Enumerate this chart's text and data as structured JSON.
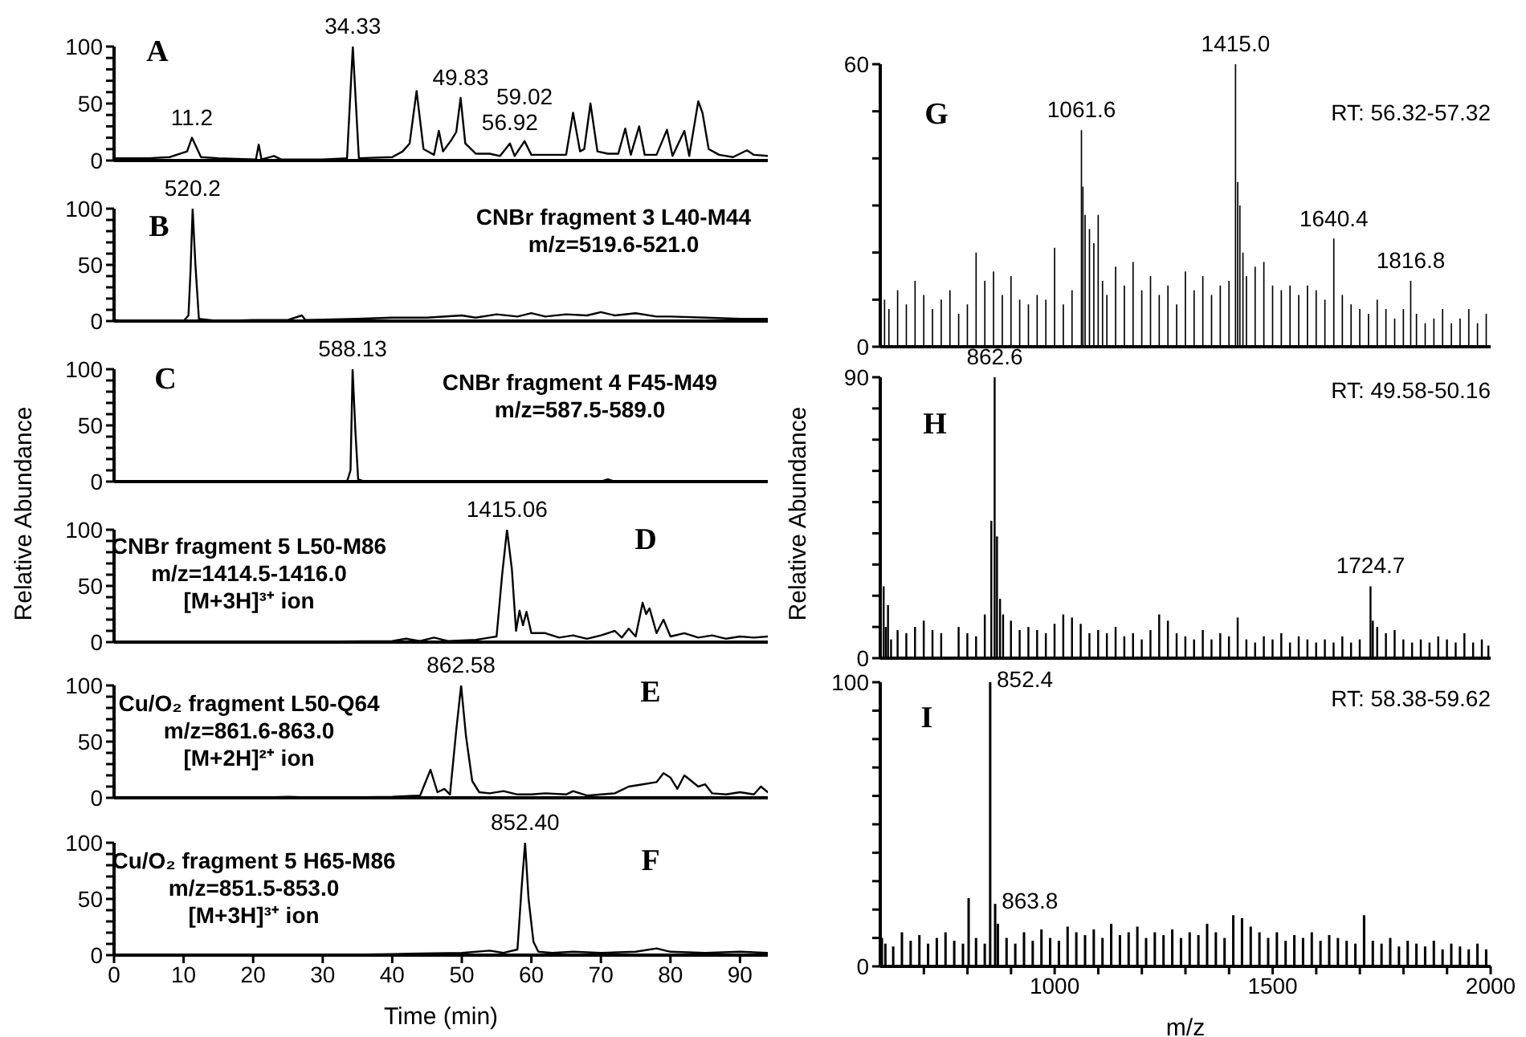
{
  "chart_data": [
    {
      "type": "line",
      "title": "A",
      "marker": "none",
      "tick_labels": "y",
      "xlim": [
        0,
        94
      ],
      "xticks": [
        0,
        10,
        20,
        30,
        40,
        50,
        60,
        70,
        80,
        90
      ],
      "ylim": [
        0,
        100
      ],
      "yticks": [
        0,
        {
          "value": 10,
          "label": null
        },
        {
          "value": 20,
          "label": null
        },
        {
          "value": 30,
          "label": null
        },
        {
          "value": 40,
          "label": null
        },
        50,
        {
          "value": 60,
          "label": null
        },
        {
          "value": 70,
          "label": null
        },
        {
          "value": 80,
          "label": null
        },
        {
          "value": 90,
          "label": null
        },
        100
      ],
      "x": [
        0,
        5,
        8,
        10.5,
        11.2,
        12.5,
        15,
        20.4,
        20.8,
        21.2,
        23,
        24,
        30,
        33.5,
        34.33,
        35.2,
        40,
        41.5,
        42.5,
        43.5,
        44.5,
        46,
        46.7,
        47.3,
        48.5,
        49.2,
        49.83,
        50.5,
        52,
        54,
        55.5,
        56.92,
        57.6,
        59.02,
        60,
        62,
        65,
        66,
        67,
        67.6,
        68.5,
        69.5,
        71,
        72.5,
        73.5,
        74.3,
        75.5,
        76.3,
        78,
        79.5,
        80.3,
        82,
        82.7,
        84,
        84.6,
        85.5,
        87,
        89,
        91,
        92,
        94
      ],
      "series": [
        {
          "color": "#000000",
          "values": [
            2,
            2,
            3,
            8,
            20,
            3,
            2,
            1,
            14,
            1,
            4,
            1,
            1,
            2,
            100,
            2,
            3,
            8,
            15,
            61,
            10,
            5,
            26,
            8,
            18,
            25,
            55,
            15,
            6,
            6,
            4,
            15,
            4,
            17,
            5,
            5,
            5,
            42,
            8,
            10,
            50,
            8,
            6,
            6,
            28,
            5,
            30,
            5,
            5,
            27,
            4,
            26,
            4,
            52,
            42,
            10,
            5,
            3,
            9,
            5,
            4
          ]
        }
      ],
      "annotations": [
        {
          "text": "11.2",
          "x": 11.2,
          "y": 20
        },
        {
          "text": "34.33",
          "x": 34.33,
          "y": 100
        },
        {
          "text": "49.83",
          "x": 49.83,
          "y": 55
        },
        {
          "text": "56.92",
          "x": 56.92,
          "y": 15
        },
        {
          "text": "59.02",
          "x": 59.02,
          "y": 17
        }
      ]
    },
    {
      "type": "line",
      "title": "B",
      "marker": "none",
      "tick_labels": "y",
      "xlim": [
        0,
        94
      ],
      "xticks": [
        0,
        10,
        20,
        30,
        40,
        50,
        60,
        70,
        80,
        90
      ],
      "ylim": [
        0,
        100
      ],
      "yticks": [
        0,
        {
          "value": 10,
          "label": null
        },
        {
          "value": 20,
          "label": null
        },
        {
          "value": 30,
          "label": null
        },
        {
          "value": 40,
          "label": null
        },
        50,
        {
          "value": 60,
          "label": null
        },
        {
          "value": 70,
          "label": null
        },
        {
          "value": 80,
          "label": null
        },
        {
          "value": 90,
          "label": null
        },
        100
      ],
      "x": [
        0,
        2,
        10,
        10.7,
        11.0,
        11.3,
        11.7,
        12.2,
        15,
        20,
        25,
        27,
        27.5,
        35,
        40,
        45,
        50,
        52,
        55,
        58,
        60,
        62,
        65,
        68,
        70,
        72,
        75,
        78,
        80,
        85,
        90,
        94
      ],
      "series": [
        {
          "color": "#000000",
          "values": [
            1,
            0,
            0,
            5,
            45,
            100,
            50,
            2,
            0,
            1,
            1,
            5,
            1,
            2,
            3,
            3,
            5,
            3,
            6,
            4,
            7,
            4,
            6,
            5,
            8,
            5,
            7,
            4,
            4,
            3,
            2,
            2
          ]
        }
      ],
      "annotations": [
        {
          "text": "520.2",
          "x": 11.3,
          "y": 100
        },
        "CNBr fragment 3 L40-M44",
        "m/z=519.6-521.0"
      ]
    },
    {
      "type": "line",
      "title": "C",
      "marker": "none",
      "tick_labels": "y",
      "ylabel": "Relative Abundance",
      "xlim": [
        0,
        94
      ],
      "xticks": [
        0,
        10,
        20,
        30,
        40,
        50,
        60,
        70,
        80,
        90
      ],
      "ylim": [
        0,
        100
      ],
      "yticks": [
        0,
        {
          "value": 10,
          "label": null
        },
        {
          "value": 20,
          "label": null
        },
        {
          "value": 30,
          "label": null
        },
        {
          "value": 40,
          "label": null
        },
        50,
        {
          "value": 60,
          "label": null
        },
        {
          "value": 70,
          "label": null
        },
        {
          "value": 80,
          "label": null
        },
        {
          "value": 90,
          "label": null
        },
        100
      ],
      "x": [
        0,
        33.5,
        34.0,
        34.3,
        34.7,
        35.1,
        36,
        70,
        71,
        72,
        94
      ],
      "series": [
        {
          "color": "#000000",
          "values": [
            0,
            0,
            10,
            100,
            45,
            2,
            0,
            0,
            2,
            0,
            0
          ]
        }
      ],
      "annotations": [
        {
          "text": "588.13",
          "x": 34.3,
          "y": 100
        },
        "CNBr fragment 4 F45-M49",
        "m/z=587.5-589.0"
      ]
    },
    {
      "type": "line",
      "title": "D",
      "marker": "none",
      "tick_labels": "y",
      "xlim": [
        0,
        94
      ],
      "xticks": [
        0,
        10,
        20,
        30,
        40,
        50,
        60,
        70,
        80,
        90
      ],
      "ylim": [
        0,
        100
      ],
      "yticks": [
        0,
        {
          "value": 10,
          "label": null
        },
        {
          "value": 20,
          "label": null
        },
        {
          "value": 30,
          "label": null
        },
        {
          "value": 40,
          "label": null
        },
        50,
        {
          "value": 60,
          "label": null
        },
        {
          "value": 70,
          "label": null
        },
        {
          "value": 80,
          "label": null
        },
        {
          "value": 90,
          "label": null
        },
        100
      ],
      "x": [
        0,
        20,
        40,
        42,
        44,
        46,
        48,
        52,
        54,
        55,
        55.8,
        56.5,
        57.2,
        57.8,
        58.3,
        58.8,
        59.3,
        60,
        62,
        64,
        66,
        68,
        70,
        72,
        73,
        74,
        75,
        76,
        76.5,
        77,
        78,
        79,
        80,
        82,
        84,
        86,
        88,
        90,
        92,
        94
      ],
      "series": [
        {
          "color": "#000000",
          "values": [
            0,
            0,
            1,
            3,
            1,
            4,
            1,
            2,
            4,
            5,
            60,
            100,
            65,
            10,
            28,
            15,
            27,
            8,
            8,
            4,
            6,
            3,
            6,
            10,
            4,
            12,
            5,
            35,
            25,
            30,
            8,
            20,
            5,
            8,
            4,
            6,
            3,
            5,
            4,
            5
          ]
        }
      ],
      "annotations": [
        {
          "text": "1415.06",
          "x": 56.5,
          "y": 100
        },
        "CNBr fragment 5 L50-M86",
        "m/z=1414.5-1416.0",
        "[M+3H]³⁺ ion"
      ]
    },
    {
      "type": "line",
      "title": "E",
      "marker": "none",
      "tick_labels": "y",
      "xlim": [
        0,
        94
      ],
      "xticks": [
        0,
        10,
        20,
        30,
        40,
        50,
        60,
        70,
        80,
        90
      ],
      "ylim": [
        0,
        100
      ],
      "yticks": [
        0,
        {
          "value": 10,
          "label": null
        },
        {
          "value": 20,
          "label": null
        },
        {
          "value": 30,
          "label": null
        },
        {
          "value": 40,
          "label": null
        },
        50,
        {
          "value": 60,
          "label": null
        },
        {
          "value": 70,
          "label": null
        },
        {
          "value": 80,
          "label": null
        },
        {
          "value": 90,
          "label": null
        },
        100
      ],
      "x": [
        0,
        20,
        25,
        30,
        40,
        44,
        45.5,
        46.5,
        47.5,
        48.3,
        49.2,
        49.9,
        50.6,
        51.5,
        52.5,
        54,
        56,
        58,
        60,
        62,
        65,
        66,
        68,
        72,
        74,
        76,
        78,
        79,
        80,
        81,
        82,
        83,
        84,
        85,
        86,
        88,
        90,
        92,
        93,
        94
      ],
      "series": [
        {
          "color": "#000000",
          "values": [
            0,
            0,
            1,
            0,
            1,
            2,
            25,
            5,
            8,
            3,
            60,
            100,
            55,
            15,
            5,
            4,
            6,
            3,
            3,
            4,
            3,
            6,
            2,
            4,
            10,
            12,
            14,
            22,
            18,
            8,
            20,
            15,
            10,
            12,
            4,
            3,
            5,
            3,
            10,
            5
          ]
        }
      ],
      "annotations": [
        {
          "text": "862.58",
          "x": 49.9,
          "y": 100
        },
        "Cu/O₂ fragment L50-Q64",
        "m/z=861.6-863.0",
        "[M+2H]²⁺ ion"
      ]
    },
    {
      "type": "line",
      "title": "F",
      "marker": "none",
      "xlabel": "Time (min)",
      "xlim": [
        0,
        94
      ],
      "xticks": [
        0,
        10,
        20,
        30,
        40,
        50,
        60,
        70,
        80,
        90
      ],
      "ylim": [
        0,
        100
      ],
      "yticks": [
        0,
        {
          "value": 10,
          "label": null
        },
        {
          "value": 20,
          "label": null
        },
        {
          "value": 30,
          "label": null
        },
        {
          "value": 40,
          "label": null
        },
        50,
        {
          "value": 60,
          "label": null
        },
        {
          "value": 70,
          "label": null
        },
        {
          "value": 80,
          "label": null
        },
        {
          "value": 90,
          "label": null
        },
        100
      ],
      "x": [
        0,
        30,
        40,
        50,
        54,
        56,
        58,
        58.6,
        59.1,
        59.6,
        60.3,
        61,
        63,
        66,
        70,
        75,
        78,
        80,
        85,
        90,
        94
      ],
      "series": [
        {
          "color": "#000000",
          "values": [
            0,
            0,
            1,
            2,
            4,
            2,
            5,
            60,
            100,
            50,
            12,
            3,
            2,
            3,
            2,
            3,
            6,
            3,
            2,
            3,
            2
          ]
        }
      ],
      "annotations": [
        {
          "text": "852.40",
          "x": 59.1,
          "y": 100
        },
        "Cu/O₂ fragment 5 H65-M86",
        "m/z=851.5-853.0",
        "[M+3H]³⁺ ion"
      ]
    },
    {
      "type": "bar",
      "title": "G",
      "tick_labels": "y",
      "xlim": [
        600,
        2000
      ],
      "ylim": [
        0,
        60
      ],
      "yticks": [
        0,
        {
          "value": 10,
          "label": null
        },
        {
          "value": 20,
          "label": null
        },
        {
          "value": 30,
          "label": null
        },
        {
          "value": 40,
          "label": null
        },
        {
          "value": 50,
          "label": null
        },
        60
      ],
      "x": [
        610,
        620,
        640,
        660,
        680,
        700,
        720,
        740,
        760,
        780,
        800,
        820,
        840,
        860,
        880,
        900,
        920,
        940,
        960,
        980,
        1000,
        1020,
        1040,
        1061.6,
        1065,
        1070,
        1080,
        1090,
        1100,
        1110,
        1120,
        1140,
        1160,
        1180,
        1200,
        1220,
        1240,
        1260,
        1280,
        1300,
        1320,
        1340,
        1360,
        1380,
        1400,
        1415.0,
        1420,
        1425,
        1432,
        1440,
        1460,
        1480,
        1500,
        1520,
        1540,
        1560,
        1580,
        1600,
        1620,
        1640.4,
        1660,
        1680,
        1700,
        1720,
        1740,
        1760,
        1780,
        1800,
        1816.8,
        1830,
        1850,
        1870,
        1890,
        1910,
        1930,
        1950,
        1970,
        1990
      ],
      "series": [
        {
          "color": "#000000",
          "values": [
            10,
            8,
            12,
            9,
            14,
            11,
            8,
            10,
            12,
            7,
            9,
            20,
            14,
            16,
            11,
            15,
            10,
            9,
            11,
            10,
            21,
            9,
            12,
            46,
            34,
            28,
            25,
            22,
            28,
            14,
            11,
            17,
            13,
            18,
            12,
            15,
            11,
            13,
            9,
            16,
            12,
            15,
            11,
            13,
            14,
            60,
            35,
            30,
            20,
            15,
            17,
            18,
            13,
            12,
            13,
            11,
            13,
            12,
            10,
            23,
            11,
            9,
            8,
            7,
            10,
            8,
            6,
            8,
            14,
            7,
            5,
            6,
            8,
            5,
            6,
            8,
            5,
            7
          ]
        }
      ],
      "annotations": [
        {
          "text": "1061.6",
          "x": 1061.6,
          "y": 46
        },
        {
          "text": "1415.0",
          "x": 1415.0,
          "y": 60
        },
        {
          "text": "1640.4",
          "x": 1640.4,
          "y": 23
        },
        {
          "text": "1816.8",
          "x": 1816.8,
          "y": 14
        },
        "RT: 56.32-57.32"
      ]
    },
    {
      "type": "bar",
      "title": "H",
      "tick_labels": "y",
      "ylabel": "Relative Abundance",
      "xlim": [
        600,
        2000
      ],
      "ylim": [
        0,
        90
      ],
      "yticks": [
        0,
        {
          "value": 10,
          "label": null
        },
        {
          "value": 20,
          "label": null
        },
        {
          "value": 30,
          "label": null
        },
        {
          "value": 40,
          "label": null
        },
        {
          "value": 50,
          "label": null
        },
        {
          "value": 60,
          "label": null
        },
        {
          "value": 70,
          "label": null
        },
        {
          "value": 80,
          "label": null
        },
        90
      ],
      "x": [
        608,
        613,
        618,
        625,
        640,
        660,
        680,
        700,
        720,
        740,
        780,
        800,
        820,
        840,
        855,
        862.6,
        868,
        875,
        882,
        900,
        920,
        940,
        960,
        980,
        1000,
        1020,
        1040,
        1060,
        1080,
        1100,
        1120,
        1140,
        1160,
        1180,
        1200,
        1220,
        1240,
        1260,
        1280,
        1300,
        1320,
        1340,
        1360,
        1380,
        1400,
        1420,
        1440,
        1460,
        1480,
        1500,
        1520,
        1540,
        1560,
        1580,
        1600,
        1620,
        1640,
        1660,
        1680,
        1700,
        1724.7,
        1730,
        1740,
        1760,
        1780,
        1800,
        1820,
        1840,
        1860,
        1880,
        1900,
        1920,
        1940,
        1960,
        1980,
        1995
      ],
      "series": [
        {
          "color": "#000000",
          "values": [
            23,
            10,
            17,
            6,
            9,
            8,
            10,
            12,
            9,
            8,
            10,
            8,
            7,
            14,
            44,
            90,
            39,
            19,
            14,
            12,
            9,
            10,
            9,
            8,
            11,
            14,
            13,
            11,
            8,
            9,
            8,
            10,
            7,
            8,
            6,
            9,
            14,
            12,
            8,
            7,
            6,
            9,
            6,
            8,
            7,
            13,
            6,
            5,
            7,
            6,
            8,
            5,
            7,
            6,
            5,
            6,
            5,
            7,
            5,
            6,
            23,
            12,
            10,
            8,
            9,
            6,
            5,
            6,
            5,
            7,
            6,
            5,
            8,
            5,
            6,
            4
          ]
        }
      ],
      "annotations": [
        {
          "text": "862.6",
          "x": 862.6,
          "y": 90
        },
        {
          "text": "1724.7",
          "x": 1724.7,
          "y": 23
        },
        "RT: 49.58-50.16"
      ]
    },
    {
      "type": "bar",
      "title": "I",
      "xlabel": "m/z",
      "xlim": [
        600,
        2000
      ],
      "xticks": [
        {
          "value": 700,
          "label": null
        },
        {
          "value": 800,
          "label": null
        },
        {
          "value": 900,
          "label": null
        },
        1000,
        {
          "value": 1100,
          "label": null
        },
        {
          "value": 1200,
          "label": null
        },
        {
          "value": 1300,
          "label": null
        },
        {
          "value": 1400,
          "label": null
        },
        1500,
        {
          "value": 1600,
          "label": null
        },
        {
          "value": 1700,
          "label": null
        },
        {
          "value": 1800,
          "label": null
        },
        {
          "value": 1900,
          "label": null
        },
        2000
      ],
      "ylim": [
        0,
        100
      ],
      "yticks": [
        0,
        {
          "value": 10,
          "label": null
        },
        {
          "value": 20,
          "label": null
        },
        {
          "value": 30,
          "label": null
        },
        {
          "value": 40,
          "label": null
        },
        {
          "value": 50,
          "label": null
        },
        {
          "value": 60,
          "label": null
        },
        {
          "value": 70,
          "label": null
        },
        {
          "value": 80,
          "label": null
        },
        {
          "value": 90,
          "label": null
        },
        100
      ],
      "x": [
        604,
        612,
        630,
        650,
        670,
        690,
        710,
        730,
        750,
        770,
        790,
        803,
        820,
        840,
        852.4,
        863.8,
        870,
        890,
        910,
        930,
        950,
        970,
        990,
        1010,
        1030,
        1050,
        1070,
        1090,
        1110,
        1130,
        1150,
        1170,
        1190,
        1210,
        1230,
        1250,
        1270,
        1290,
        1310,
        1330,
        1350,
        1370,
        1390,
        1410,
        1430,
        1450,
        1470,
        1490,
        1510,
        1530,
        1550,
        1570,
        1590,
        1610,
        1630,
        1650,
        1670,
        1690,
        1710,
        1730,
        1750,
        1770,
        1790,
        1810,
        1830,
        1850,
        1870,
        1890,
        1910,
        1930,
        1950,
        1970,
        1990
      ],
      "series": [
        {
          "color": "#000000",
          "values": [
            10,
            8,
            7,
            12,
            9,
            11,
            8,
            10,
            12,
            9,
            8,
            24,
            10,
            8,
            100,
            22,
            15,
            10,
            8,
            12,
            9,
            13,
            10,
            9,
            14,
            12,
            11,
            13,
            10,
            15,
            11,
            12,
            14,
            10,
            12,
            11,
            13,
            10,
            12,
            11,
            15,
            12,
            10,
            18,
            17,
            14,
            12,
            10,
            12,
            9,
            11,
            10,
            12,
            9,
            11,
            10,
            9,
            8,
            18,
            9,
            8,
            10,
            7,
            9,
            8,
            7,
            9,
            6,
            8,
            7,
            6,
            8,
            6
          ]
        }
      ],
      "annotations": [
        {
          "text": "852.4",
          "x": 852.4,
          "y": 100
        },
        {
          "text": "863.8",
          "x": 863.8,
          "y": 22
        },
        "RT: 58.38-59.62"
      ]
    }
  ]
}
